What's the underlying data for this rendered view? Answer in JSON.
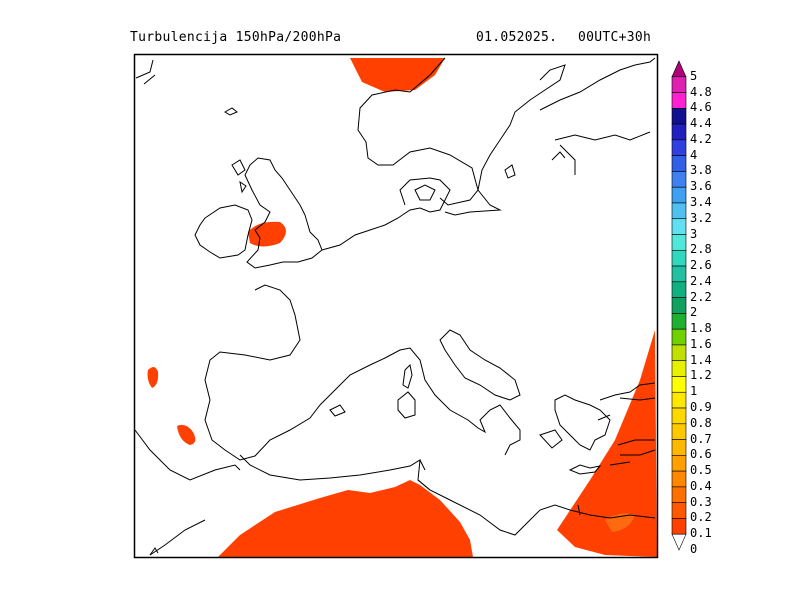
{
  "header": {
    "title": "Turbulencija 150hPa/200hPa",
    "date": "01.052025.",
    "run": "00UTC+30h"
  },
  "legend": {
    "levels": [
      "5",
      "4.8",
      "4.6",
      "4.4",
      "4.2",
      "4",
      "3.8",
      "3.6",
      "3.4",
      "3.2",
      "3",
      "2.8",
      "2.6",
      "2.4",
      "2.2",
      "2",
      "1.8",
      "1.6",
      "1.4",
      "1.2",
      "1",
      "0.9",
      "0.8",
      "0.7",
      "0.6",
      "0.5",
      "0.4",
      "0.3",
      "0.2",
      "0.1",
      "0"
    ],
    "colors": [
      "#b0007a",
      "#e020b0",
      "#ff20d0",
      "#101090",
      "#2020c0",
      "#3040e0",
      "#3060e8",
      "#4080f0",
      "#40a0f0",
      "#50c0f0",
      "#60e0f0",
      "#50e8d8",
      "#30d8c0",
      "#20c0a0",
      "#10b080",
      "#10a060",
      "#20b030",
      "#70d000",
      "#c0e000",
      "#e8f000",
      "#ffff00",
      "#ffe800",
      "#ffd800",
      "#ffc800",
      "#ffb800",
      "#ffa000",
      "#ff8800",
      "#ff7000",
      "#ff5800",
      "#ff4000"
    ]
  },
  "colors": {
    "turbulence_fill": "#ff4000",
    "coastline": "#000000",
    "frame": "#000000"
  }
}
